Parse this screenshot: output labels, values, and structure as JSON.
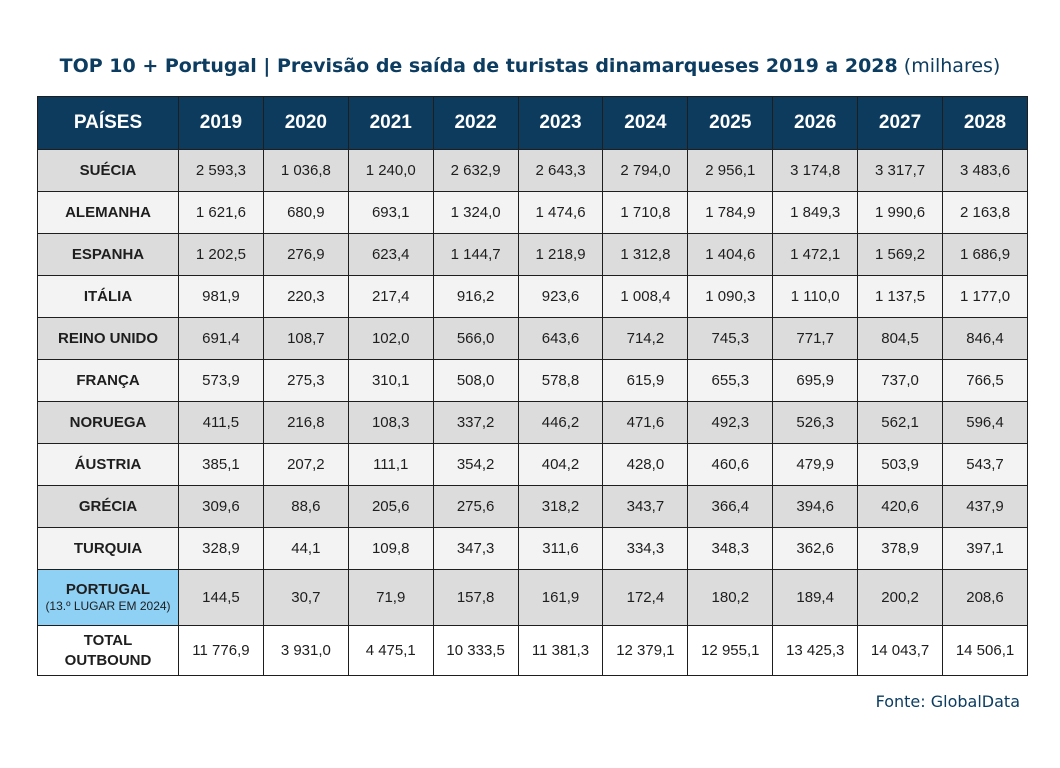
{
  "title": {
    "main": "TOP 10 + Portugal | Previsão de saída de turistas dinamarqueses 2019 a 2028",
    "unit": "(milhares)"
  },
  "source": "Fonte: GlobalData",
  "colors": {
    "header_bg": "#0c3b5e",
    "title_text": "#0c3c60",
    "portugal_highlight": "#8fd0f5",
    "row_alt_dark": "#dcdcdc",
    "row_alt_light": "#f3f3f3"
  },
  "chart_data": {
    "type": "table",
    "columns": [
      "PAÍSES",
      "2019",
      "2020",
      "2021",
      "2022",
      "2023",
      "2024",
      "2025",
      "2026",
      "2027",
      "2028"
    ],
    "rows": [
      {
        "country": "SUÉCIA",
        "values": [
          "2 593,3",
          "1 036,8",
          "1 240,0",
          "2 632,9",
          "2 643,3",
          "2 794,0",
          "2 956,1",
          "3 174,8",
          "3 317,7",
          "3 483,6"
        ]
      },
      {
        "country": "ALEMANHA",
        "values": [
          "1 621,6",
          "680,9",
          "693,1",
          "1 324,0",
          "1 474,6",
          "1 710,8",
          "1 784,9",
          "1 849,3",
          "1 990,6",
          "2 163,8"
        ]
      },
      {
        "country": "ESPANHA",
        "values": [
          "1 202,5",
          "276,9",
          "623,4",
          "1 144,7",
          "1 218,9",
          "1 312,8",
          "1 404,6",
          "1 472,1",
          "1 569,2",
          "1 686,9"
        ]
      },
      {
        "country": "ITÁLIA",
        "values": [
          "981,9",
          "220,3",
          "217,4",
          "916,2",
          "923,6",
          "1 008,4",
          "1 090,3",
          "1 110,0",
          "1 137,5",
          "1 177,0"
        ]
      },
      {
        "country": "REINO UNIDO",
        "values": [
          "691,4",
          "108,7",
          "102,0",
          "566,0",
          "643,6",
          "714,2",
          "745,3",
          "771,7",
          "804,5",
          "846,4"
        ]
      },
      {
        "country": "FRANÇA",
        "values": [
          "573,9",
          "275,3",
          "310,1",
          "508,0",
          "578,8",
          "615,9",
          "655,3",
          "695,9",
          "737,0",
          "766,5"
        ]
      },
      {
        "country": "NORUEGA",
        "values": [
          "411,5",
          "216,8",
          "108,3",
          "337,2",
          "446,2",
          "471,6",
          "492,3",
          "526,3",
          "562,1",
          "596,4"
        ]
      },
      {
        "country": "ÁUSTRIA",
        "values": [
          "385,1",
          "207,2",
          "111,1",
          "354,2",
          "404,2",
          "428,0",
          "460,6",
          "479,9",
          "503,9",
          "543,7"
        ]
      },
      {
        "country": "GRÉCIA",
        "values": [
          "309,6",
          "88,6",
          "205,6",
          "275,6",
          "318,2",
          "343,7",
          "366,4",
          "394,6",
          "420,6",
          "437,9"
        ]
      },
      {
        "country": "TURQUIA",
        "values": [
          "328,9",
          "44,1",
          "109,8",
          "347,3",
          "311,6",
          "334,3",
          "348,3",
          "362,6",
          "378,9",
          "397,1"
        ]
      },
      {
        "country": "PORTUGAL",
        "note": "(13.º LUGAR EM 2024)",
        "values": [
          "144,5",
          "30,7",
          "71,9",
          "157,8",
          "161,9",
          "172,4",
          "180,2",
          "189,4",
          "200,2",
          "208,6"
        ]
      },
      {
        "country": "TOTAL OUTBOUND",
        "values": [
          "11 776,9",
          "3 931,0",
          "4 475,1",
          "10 333,5",
          "11 381,3",
          "12 379,1",
          "12 955,1",
          "13 425,3",
          "14 043,7",
          "14 506,1"
        ]
      }
    ]
  }
}
